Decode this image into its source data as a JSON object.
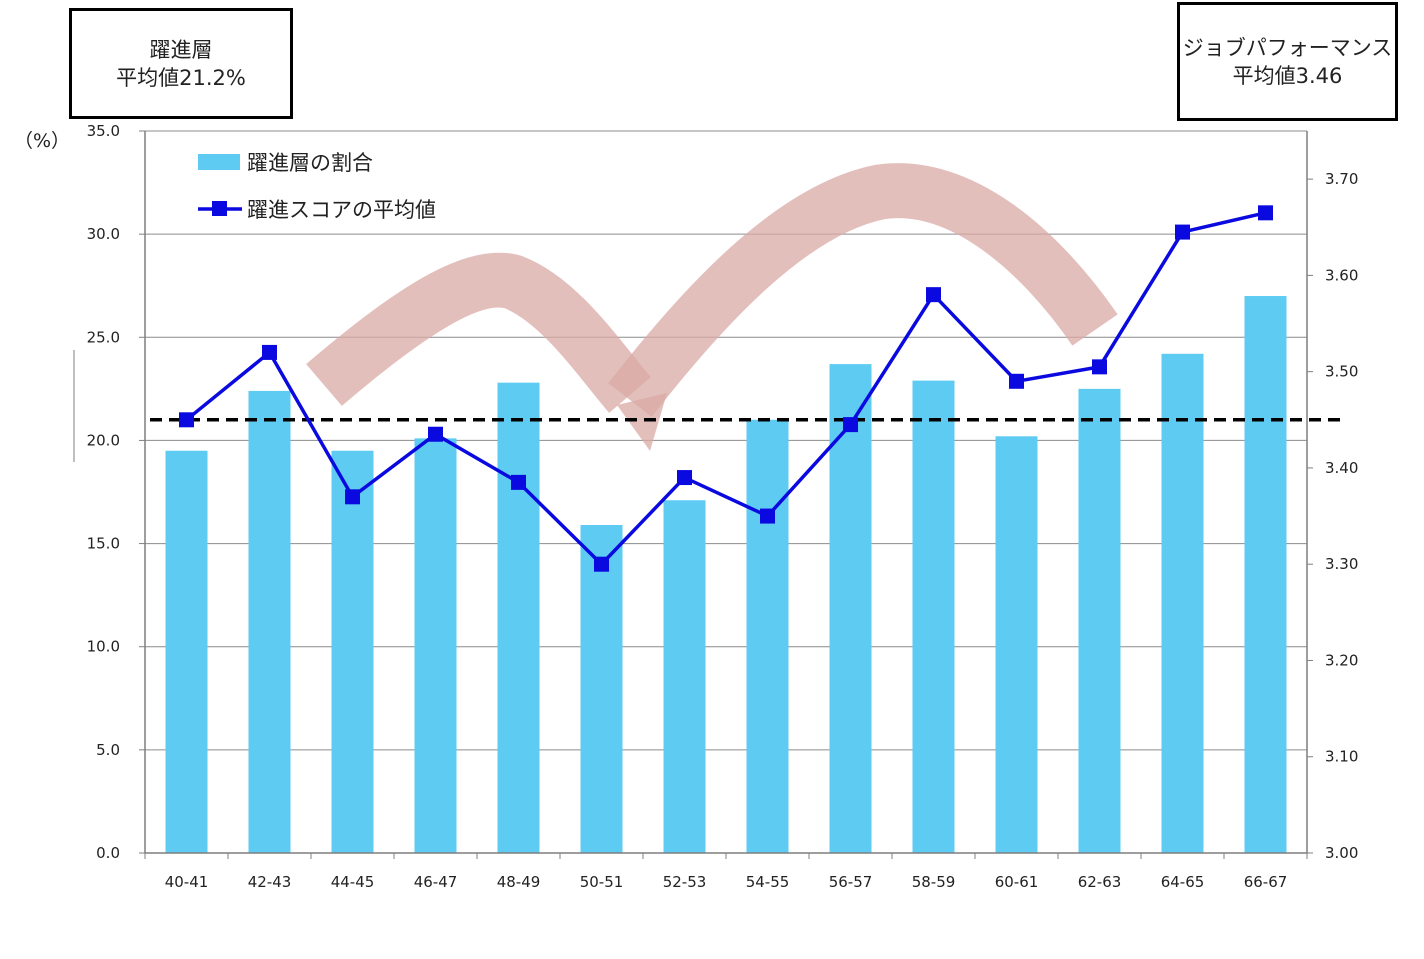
{
  "callouts": {
    "left": {
      "line1": "躍進層",
      "line2": "平均値21.2%"
    },
    "right": {
      "line1": "ジョブパフォーマンス",
      "line2": "平均値3.46"
    }
  },
  "left_axis_unit": "（%）",
  "chart_data": {
    "type": "bar",
    "title": "",
    "categories": [
      "40-41",
      "42-43",
      "44-45",
      "46-47",
      "48-49",
      "50-51",
      "52-53",
      "54-55",
      "56-57",
      "58-59",
      "60-61",
      "62-63",
      "64-65",
      "66-67"
    ],
    "series": [
      {
        "name": "躍進層の割合",
        "type": "bar",
        "axis": "left",
        "color": "#5ECBF3",
        "values": [
          19.5,
          22.4,
          19.5,
          20.1,
          22.8,
          15.9,
          17.1,
          21.0,
          23.7,
          22.9,
          20.2,
          22.5,
          24.2,
          27.0
        ]
      },
      {
        "name": "躍進スコアの平均値",
        "type": "line",
        "axis": "right",
        "color": "#0A0AE0",
        "values": [
          3.45,
          3.52,
          3.37,
          3.435,
          3.385,
          3.3,
          3.39,
          3.35,
          3.445,
          3.58,
          3.49,
          3.505,
          3.645,
          3.665
        ]
      }
    ],
    "reference_line": {
      "axis": "left",
      "value": 21.0,
      "style": "dashed",
      "color": "#000000"
    },
    "y_left": {
      "ylim": [
        0,
        35
      ],
      "ticks": [
        "0.0",
        "5.0",
        "10.0",
        "15.0",
        "20.0",
        "25.0",
        "30.0",
        "35.0"
      ]
    },
    "y_right": {
      "ylim": [
        3.0,
        3.75
      ],
      "ticks": [
        "3.00",
        "3.10",
        "3.20",
        "3.30",
        "3.40",
        "3.50",
        "3.60",
        "3.70"
      ]
    },
    "grid": true,
    "legend": "top-left",
    "annotation": {
      "type": "wave-arrow",
      "color": "#D9A9A6"
    }
  }
}
